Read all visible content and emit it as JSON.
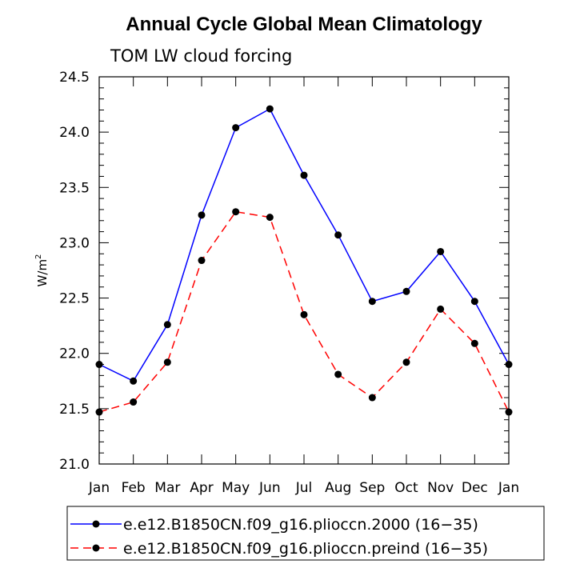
{
  "chart_data": {
    "type": "line",
    "title": "Annual Cycle Global Mean Climatology",
    "subtitle": "TOM LW cloud forcing",
    "ylabel": "W/m",
    "ylabel_superscript": "2",
    "categories": [
      "Jan",
      "Feb",
      "Mar",
      "Apr",
      "May",
      "Jun",
      "Jul",
      "Aug",
      "Sep",
      "Oct",
      "Nov",
      "Dec",
      "Jan"
    ],
    "ylim": [
      21.0,
      24.5
    ],
    "yticks": [
      21.0,
      21.5,
      22.0,
      22.5,
      23.0,
      23.5,
      24.0,
      24.5
    ],
    "ytick_labels": [
      "21.0",
      "21.5",
      "22.0",
      "22.5",
      "23.0",
      "23.5",
      "24.0",
      "24.5"
    ],
    "series": [
      {
        "name": "e.e12.B1850CN.f09_g16.plioccn.2000 (16−35)",
        "color": "#0000ff",
        "dash": "solid",
        "values": [
          21.9,
          21.75,
          22.26,
          23.25,
          24.04,
          24.21,
          23.61,
          23.07,
          22.47,
          22.56,
          22.92,
          22.47,
          21.9
        ]
      },
      {
        "name": "e.e12.B1850CN.f09_g16.plioccn.preind (16−35)",
        "color": "#ff0000",
        "dash": "dashed",
        "values": [
          21.47,
          21.56,
          21.92,
          22.84,
          23.28,
          23.23,
          22.35,
          21.81,
          21.6,
          21.92,
          22.4,
          22.09,
          21.47
        ]
      }
    ],
    "legend_position": "bottom"
  }
}
